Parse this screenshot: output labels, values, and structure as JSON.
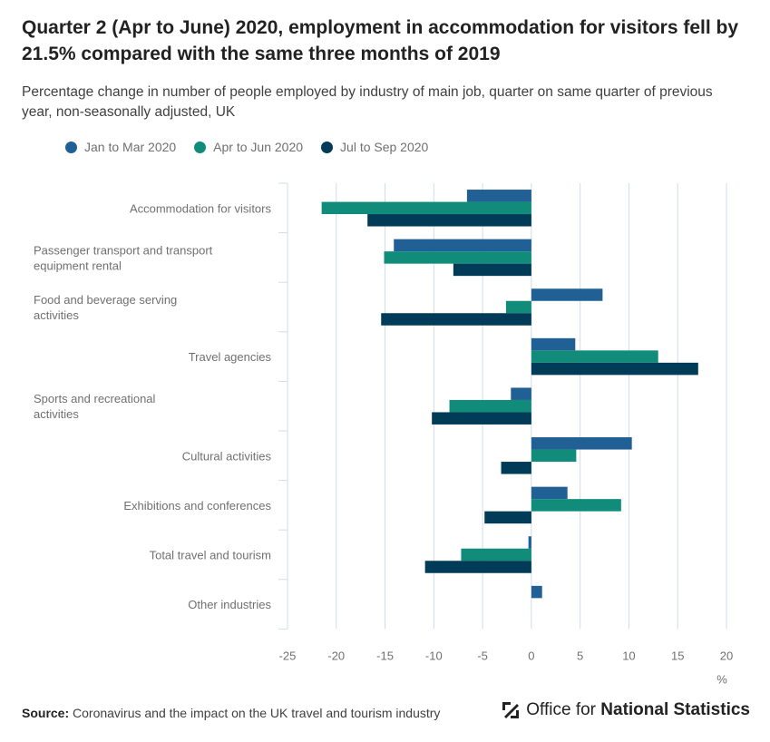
{
  "title": "Quarter 2 (Apr to June) 2020, employment in accommodation for visitors fell by 21.5% compared with the same three months of 2019",
  "subtitle": "Percentage change in number of people employed by industry of main job, quarter on same quarter of previous year, non-seasonally adjusted, UK",
  "source_label": "Source:",
  "source_text": "Coronavirus and the impact on the UK travel and tourism industry",
  "logo_text_regular": "Office for ",
  "logo_text_bold": "National Statistics",
  "colors": {
    "jan_mar": "#206095",
    "apr_jun": "#118c7b",
    "jul_sep": "#003c57",
    "grid": "#d0dde8",
    "text": "#707071"
  },
  "chart_data": {
    "type": "bar",
    "orientation": "horizontal",
    "categories": [
      "Accommodation for visitors",
      "Passenger transport and transport equipment rental",
      "Food and beverage serving activities",
      "Travel agencies",
      "Sports and recreational activities",
      "Cultural activities",
      "Exhibitions and conferences",
      "Total travel and tourism",
      "Other industries"
    ],
    "series": [
      {
        "name": "Jan to Mar 2020",
        "values": [
          -6.6,
          -14.1,
          7.3,
          4.5,
          -2.1,
          10.3,
          3.7,
          -0.3,
          1.1
        ]
      },
      {
        "name": "Apr to Jun 2020",
        "values": [
          -21.5,
          -15.1,
          -2.6,
          13.0,
          -8.4,
          4.6,
          9.2,
          -7.2,
          0.0
        ]
      },
      {
        "name": "Jul to Sep 2020",
        "values": [
          -16.8,
          -8.0,
          -15.4,
          17.1,
          -10.2,
          -3.1,
          -4.8,
          -10.9,
          0.0
        ]
      }
    ],
    "xlim": [
      -25,
      20
    ],
    "xticks": [
      -25,
      -20,
      -15,
      -10,
      -5,
      0,
      5,
      10,
      15,
      20
    ],
    "xlabel": "%",
    "legend_position": "top-left",
    "grid": true
  }
}
